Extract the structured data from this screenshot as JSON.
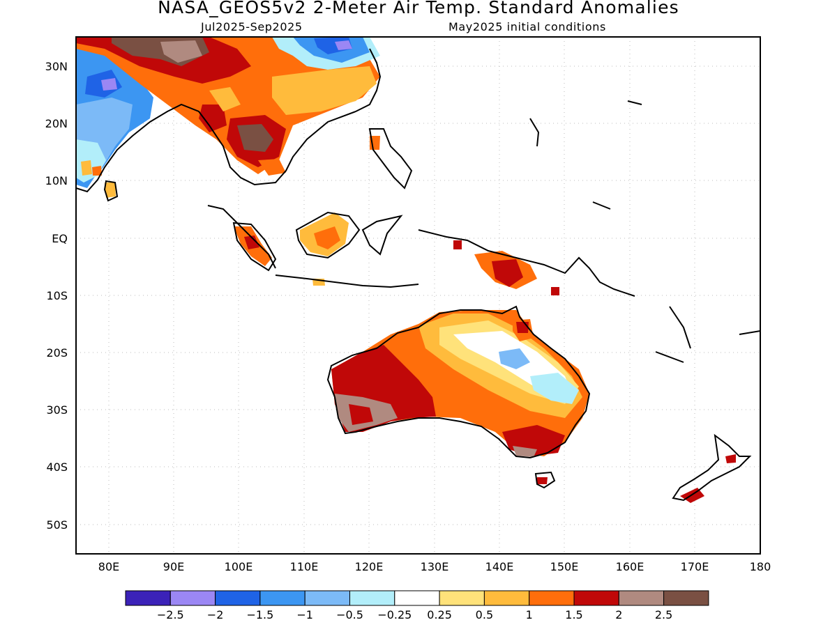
{
  "title": "NASA_GEOS5v2 2-Meter Air Temp. Standard Anomalies",
  "period": "Jul2025-Sep2025",
  "init": "May2025 initial conditions",
  "lat_labels": [
    "30N",
    "20N",
    "10N",
    "EQ",
    "10S",
    "20S",
    "30S",
    "40S",
    "50S"
  ],
  "lon_labels": [
    "80E",
    "90E",
    "100E",
    "110E",
    "120E",
    "130E",
    "140E",
    "150E",
    "160E",
    "170E",
    "180"
  ],
  "colorbar": {
    "colors": [
      "#3b22b8",
      "#9b87f4",
      "#1f63e6",
      "#3c96f2",
      "#7cbaf7",
      "#b2eefa",
      "#ffffff",
      "#ffe27a",
      "#ffbb3c",
      "#ff6e0b",
      "#c00808",
      "#b08a80",
      "#7a5043"
    ],
    "ticks": [
      "-2.5",
      "-2",
      "-1.5",
      "-1",
      "-0.5",
      "-0.25",
      "0.25",
      "0.5",
      "1",
      "1.5",
      "2",
      "2.5"
    ]
  }
}
